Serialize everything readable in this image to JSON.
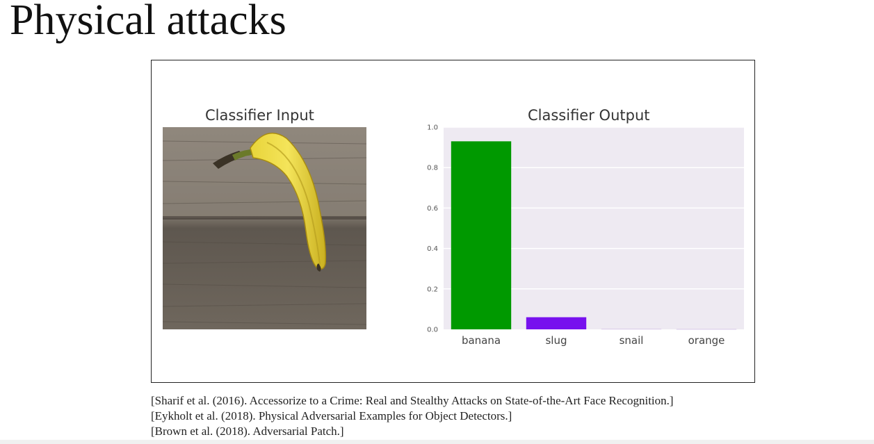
{
  "slide": {
    "title": "Physical attacks"
  },
  "figure": {
    "input_title": "Classifier Input",
    "output_title": "Classifier Output"
  },
  "chart_data": {
    "type": "bar",
    "title": "Classifier Output",
    "categories": [
      "banana",
      "slug",
      "snail",
      "orange"
    ],
    "values": [
      0.93,
      0.06,
      0.003,
      0.002
    ],
    "colors": [
      "#009900",
      "#7711ee",
      "#d8c8e8",
      "#d8c8e8"
    ],
    "yticks": [
      "0.0",
      "0.2",
      "0.4",
      "0.6",
      "0.8",
      "1.0"
    ],
    "ylim": [
      0,
      1.0
    ],
    "grid": true,
    "background": "#eeeaf2"
  },
  "references": [
    "[Sharif et al. (2016). Accessorize to a Crime: Real and Stealthy Attacks on State-of-the-Art Face Recognition.]",
    "[Eykholt et al. (2018). Physical Adversarial Examples for Object Detectors.]",
    "[Brown et al. (2018). Adversarial Patch.]"
  ]
}
